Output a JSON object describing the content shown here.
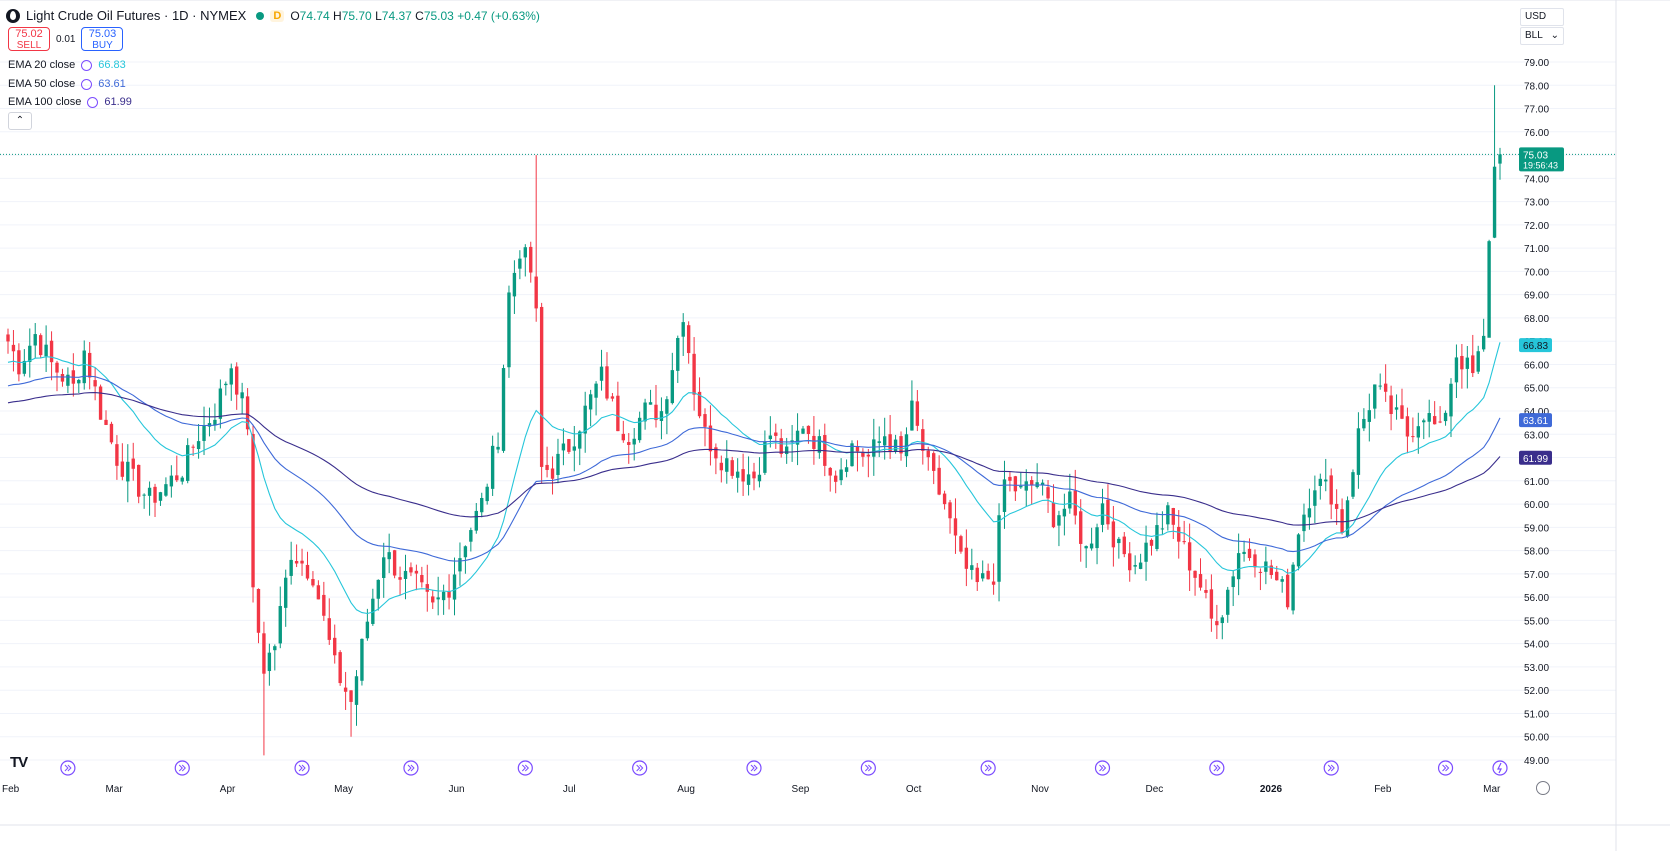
{
  "header": {
    "title": "Light Crude Oil Futures · 1D · NYMEX",
    "market_status": "D",
    "ohlc": {
      "o_label": "O",
      "o": "74.74",
      "h_label": "H",
      "h": "75.70",
      "l_label": "L",
      "l": "74.37",
      "c_label": "C",
      "c": "75.03",
      "change": "+0.47 (+0.63%)"
    }
  },
  "trade": {
    "sell_price": "75.02",
    "sell_label": "SELL",
    "spread": "0.01",
    "buy_price": "75.03",
    "buy_label": "BUY"
  },
  "indicators": [
    {
      "label": "EMA 20 close",
      "value": "66.83",
      "color": "#26c6da"
    },
    {
      "label": "EMA 50 close",
      "value": "63.61",
      "color": "#3f6ad8"
    },
    {
      "label": "EMA 100 close",
      "value": "61.99",
      "color": "#3a2e8c"
    }
  ],
  "right_panel": {
    "currency": "USD",
    "unit": "BLL"
  },
  "price_tag": {
    "value": "75.03",
    "countdown": "19:56:43"
  },
  "colors": {
    "up": "#089981",
    "down": "#f23645",
    "ema20": "#26c6da",
    "ema50": "#3f6ad8",
    "ema100": "#3a2e8c"
  },
  "icons": [
    "tradingview-logo-icon",
    "event-arrow-icon",
    "lightning-icon",
    "gear-icon",
    "chevron-up-icon",
    "chevron-down-icon"
  ],
  "chart_data": {
    "type": "candlestick",
    "title": "Light Crude Oil Futures",
    "y_axis": {
      "min": 49,
      "max": 79,
      "ticks": [
        "49.00",
        "50.00",
        "51.00",
        "52.00",
        "53.00",
        "54.00",
        "55.00",
        "56.00",
        "57.00",
        "58.00",
        "59.00",
        "60.00",
        "61.00",
        "62.00",
        "63.00",
        "64.00",
        "65.00",
        "66.00",
        "67.00",
        "68.00",
        "69.00",
        "70.00",
        "71.00",
        "72.00",
        "73.00",
        "74.00",
        "75.00",
        "76.00",
        "77.00",
        "78.00",
        "79.00"
      ]
    },
    "x_axis": {
      "labels": [
        {
          "text": "Feb",
          "index": 0
        },
        {
          "text": "Mar",
          "index": 19
        },
        {
          "text": "Apr",
          "index": 40
        },
        {
          "text": "May",
          "index": 61
        },
        {
          "text": "Jun",
          "index": 82
        },
        {
          "text": "Jul",
          "index": 103
        },
        {
          "text": "Aug",
          "index": 124
        },
        {
          "text": "Sep",
          "index": 145
        },
        {
          "text": "Oct",
          "index": 166
        },
        {
          "text": "Nov",
          "index": 189
        },
        {
          "text": "Dec",
          "index": 210
        },
        {
          "text": "2026",
          "index": 231
        },
        {
          "text": "Feb",
          "index": 252
        },
        {
          "text": "Mar",
          "index": 272
        }
      ]
    },
    "event_markers": [
      11,
      32,
      54,
      74,
      95,
      116,
      137,
      158,
      180,
      201,
      222,
      243,
      264
    ],
    "last_price": 75.03,
    "anchors": [
      [
        0,
        67.0
      ],
      [
        2,
        66.0
      ],
      [
        5,
        67.3
      ],
      [
        8,
        66.0
      ],
      [
        12,
        65.0
      ],
      [
        14,
        66.6
      ],
      [
        17,
        64.0
      ],
      [
        20,
        62.0
      ],
      [
        23,
        61.0
      ],
      [
        26,
        60.2
      ],
      [
        29,
        60.8
      ],
      [
        32,
        61.5
      ],
      [
        35,
        63.0
      ],
      [
        38,
        64.0
      ],
      [
        41,
        66.0
      ],
      [
        44,
        63.5
      ],
      [
        45,
        56.0
      ],
      [
        47,
        53.0
      ],
      [
        49,
        54.0
      ],
      [
        52,
        58.0
      ],
      [
        54,
        57.5
      ],
      [
        56,
        57.0
      ],
      [
        60,
        53.0
      ],
      [
        63,
        51.5
      ],
      [
        66,
        55.0
      ],
      [
        69,
        58.0
      ],
      [
        72,
        57.0
      ],
      [
        75,
        56.5
      ],
      [
        78,
        55.5
      ],
      [
        81,
        56.5
      ],
      [
        84,
        58.5
      ],
      [
        87,
        60.0
      ],
      [
        90,
        63.0
      ],
      [
        92,
        69.0
      ],
      [
        94,
        71.0
      ],
      [
        96,
        70.0
      ],
      [
        97,
        68.0
      ],
      [
        98,
        61.5
      ],
      [
        100,
        61.5
      ],
      [
        103,
        62.5
      ],
      [
        106,
        64.0
      ],
      [
        109,
        65.5
      ],
      [
        112,
        63.5
      ],
      [
        114,
        63.0
      ],
      [
        117,
        64.0
      ],
      [
        120,
        64.0
      ],
      [
        122,
        66.0
      ],
      [
        124,
        68.3
      ],
      [
        126,
        65.0
      ],
      [
        128,
        63.0
      ],
      [
        131,
        62.0
      ],
      [
        134,
        61.5
      ],
      [
        137,
        61.2
      ],
      [
        140,
        63.0
      ],
      [
        143,
        62.0
      ],
      [
        146,
        63.5
      ],
      [
        149,
        62.5
      ],
      [
        152,
        61.3
      ],
      [
        155,
        62.5
      ],
      [
        158,
        62.0
      ],
      [
        161,
        63.0
      ],
      [
        164,
        62.0
      ],
      [
        166,
        64.0
      ],
      [
        169,
        61.5
      ],
      [
        172,
        60.0
      ],
      [
        175,
        57.5
      ],
      [
        178,
        56.5
      ],
      [
        181,
        57.0
      ],
      [
        183,
        61.0
      ],
      [
        186,
        60.5
      ],
      [
        189,
        61.0
      ],
      [
        192,
        59.5
      ],
      [
        195,
        60.0
      ],
      [
        198,
        58.0
      ],
      [
        201,
        60.0
      ],
      [
        204,
        58.0
      ],
      [
        207,
        57.5
      ],
      [
        210,
        58.5
      ],
      [
        213,
        59.5
      ],
      [
        216,
        58.0
      ],
      [
        219,
        56.5
      ],
      [
        221,
        55.0
      ],
      [
        223,
        55.5
      ],
      [
        226,
        58.0
      ],
      [
        229,
        57.8
      ],
      [
        232,
        57.0
      ],
      [
        235,
        56.0
      ],
      [
        237,
        59.0
      ],
      [
        240,
        61.0
      ],
      [
        243,
        60.5
      ],
      [
        245,
        59.0
      ],
      [
        248,
        63.0
      ],
      [
        251,
        65.0
      ],
      [
        254,
        64.0
      ],
      [
        257,
        63.0
      ],
      [
        260,
        64.0
      ],
      [
        263,
        63.0
      ],
      [
        266,
        66.5
      ],
      [
        269,
        65.5
      ],
      [
        271,
        67.0
      ],
      [
        272,
        71.3
      ],
      [
        273,
        74.5
      ],
      [
        274,
        75.03
      ]
    ]
  }
}
